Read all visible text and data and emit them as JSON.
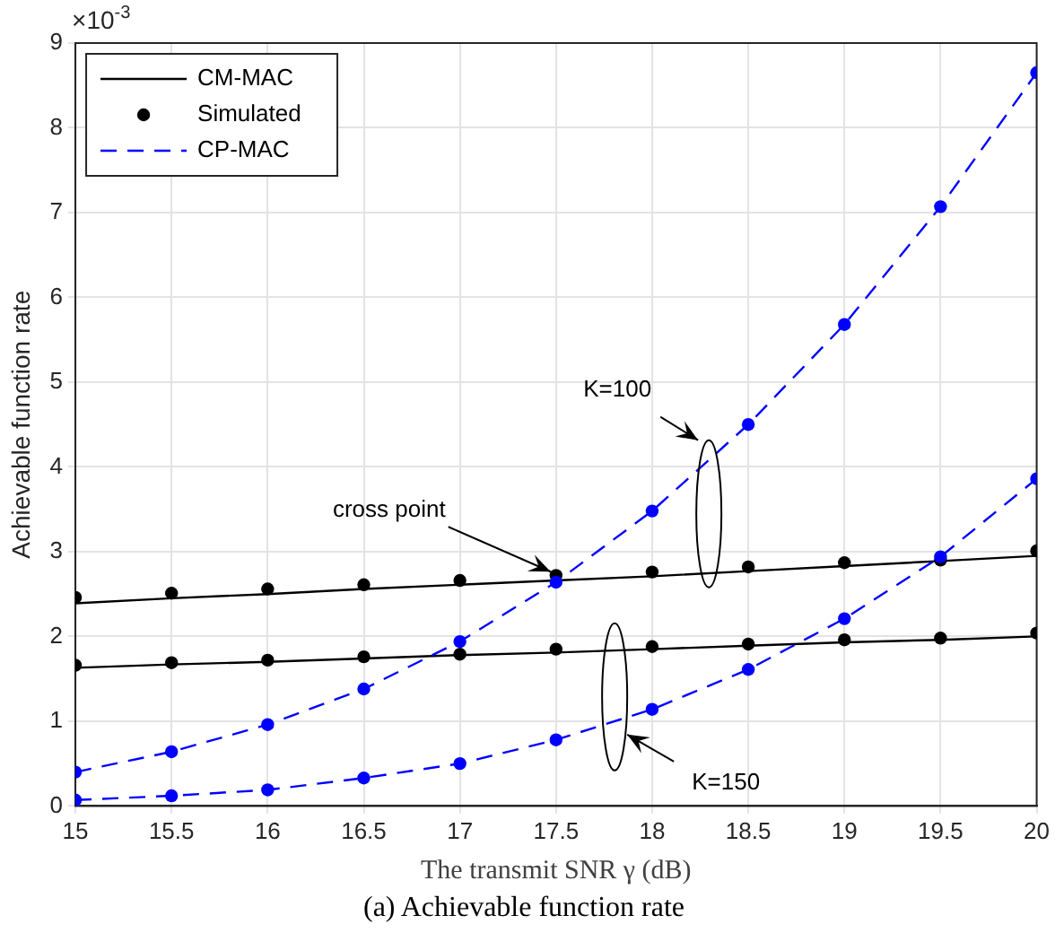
{
  "chart_data": {
    "type": "line",
    "title": "(a) Achievable function rate",
    "xlabel": "The transmit SNR γ (dB)",
    "ylabel": "Achievable function rate",
    "x": [
      15,
      15.5,
      16,
      16.5,
      17,
      17.5,
      18,
      18.5,
      19,
      19.5,
      20
    ],
    "series": [
      {
        "name": "CM-MAC",
        "color": "#000000",
        "line_style": "solid",
        "marker": "none",
        "values": [
          2.39,
          2.45,
          2.5,
          2.56,
          2.61,
          2.66,
          2.71,
          2.77,
          2.83,
          2.89,
          2.95
        ]
      },
      {
        "color": "#000000",
        "line_style": "solid",
        "marker": "none",
        "values": [
          1.63,
          1.67,
          1.7,
          1.74,
          1.78,
          1.81,
          1.85,
          1.89,
          1.93,
          1.96,
          2.0
        ]
      },
      {
        "name": "Simulated",
        "type": "scatter",
        "color": "#000000",
        "marker": "circle",
        "values": [
          2.46,
          2.51,
          2.56,
          2.61,
          2.66,
          2.72,
          2.76,
          2.82,
          2.87,
          2.9,
          3.01
        ]
      },
      {
        "type": "scatter",
        "color": "#000000",
        "marker": "circle",
        "values": [
          1.66,
          1.69,
          1.72,
          1.76,
          1.79,
          1.85,
          1.88,
          1.91,
          1.96,
          1.98,
          2.04
        ]
      },
      {
        "name": "CP-MAC",
        "color": "#0000ff",
        "line_style": "dashed",
        "marker": "circle",
        "values": [
          0.4,
          0.64,
          0.96,
          1.38,
          1.94,
          2.64,
          3.48,
          4.5,
          5.68,
          7.07,
          8.65
        ]
      },
      {
        "color": "#0000ff",
        "line_style": "dashed",
        "marker": "circle",
        "values": [
          0.07,
          0.12,
          0.19,
          0.33,
          0.5,
          0.78,
          1.14,
          1.61,
          2.21,
          2.94,
          3.86
        ]
      }
    ],
    "xlim": [
      15,
      20
    ],
    "xticks": [
      15,
      15.5,
      16,
      16.5,
      17,
      17.5,
      18,
      18.5,
      19,
      19.5,
      20
    ],
    "ylim": [
      0,
      9
    ],
    "yticks": [
      0,
      1,
      2,
      3,
      4,
      5,
      6,
      7,
      8,
      9
    ],
    "grid": true,
    "legend": "top left",
    "annotations": [
      "×10$^{-3}$",
      {
        "text": "cross point",
        "x": 17.5,
        "y": 2.7
      },
      "K=100",
      "K=150"
    ]
  }
}
